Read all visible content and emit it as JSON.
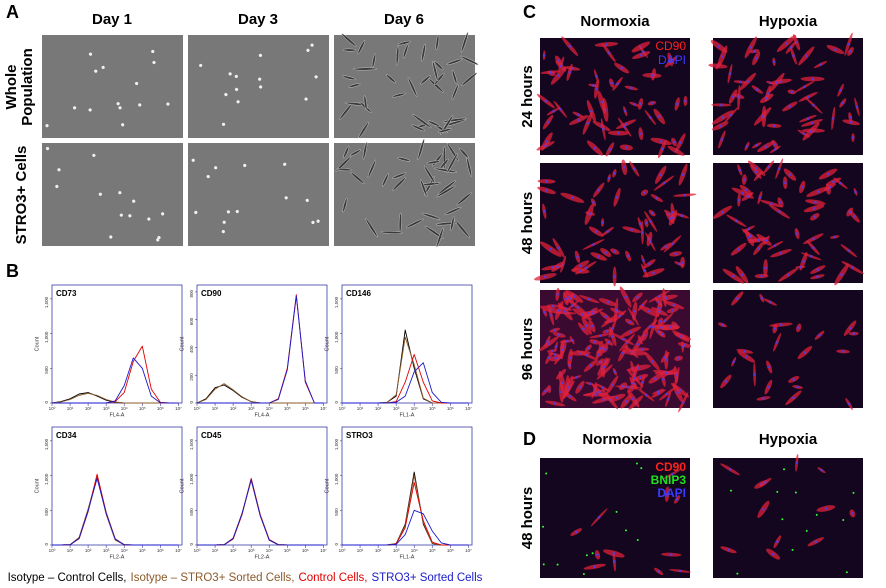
{
  "panel_a": {
    "label": "A",
    "columns": [
      "Day 1",
      "Day 3",
      "Day 6"
    ],
    "rows": [
      [
        "Whole",
        "Population"
      ],
      [
        "STRO3+ Cells"
      ]
    ]
  },
  "panel_b": {
    "label": "B",
    "legend": [
      {
        "text": "Isotype – Control Cells,",
        "color": "#000000"
      },
      {
        "text": "Isotype – STRO3+ Sorted Cells,",
        "color": "#8b5a2b"
      },
      {
        "text": "Control Cells,",
        "color": "#e00000"
      },
      {
        "text": "STRO3+ Sorted Cells",
        "color": "#1a1acc"
      }
    ]
  },
  "panel_c": {
    "label": "C",
    "columns": [
      "Normoxia",
      "Hypoxia"
    ],
    "rows": [
      "24 hours",
      "48 hours",
      "96 hours"
    ],
    "stains": [
      {
        "text": "CD90",
        "color": "#ff2020"
      },
      {
        "text": "DAPI",
        "color": "#3b3bff"
      }
    ]
  },
  "panel_d": {
    "label": "D",
    "columns": [
      "Normoxia",
      "Hypoxia"
    ],
    "rows": [
      "48 hours"
    ],
    "stains": [
      {
        "text": "CD90",
        "color": "#ff2020"
      },
      {
        "text": "BNIP3",
        "color": "#20e020"
      },
      {
        "text": "DAPI",
        "color": "#3b3bff"
      }
    ]
  },
  "chart_data": [
    {
      "type": "line",
      "title": "CD73",
      "xlabel": "FL4-A",
      "ylabel": "Count",
      "x": [
        0,
        0.5,
        1,
        1.5,
        2,
        2.5,
        3,
        3.5,
        4,
        4.5,
        5,
        5.5,
        6,
        6.5,
        7
      ],
      "xlim": [
        0,
        7.2
      ],
      "xticks": [
        {
          "value": 0,
          "label": "10⁰"
        },
        {
          "value": 1,
          "label": "10¹"
        },
        {
          "value": 2,
          "label": "10²"
        },
        {
          "value": 3,
          "label": "10³"
        },
        {
          "value": 4,
          "label": "10⁴"
        },
        {
          "value": 5,
          "label": "10⁵"
        },
        {
          "value": 6,
          "label": "10⁶"
        },
        {
          "value": 7,
          "label": "10⁷"
        }
      ],
      "ylim": [
        0,
        1700
      ],
      "yticks": [
        0,
        500,
        {
          "value": 1000,
          "label": "1,000"
        },
        {
          "value": 1500,
          "label": "1,500"
        }
      ],
      "series": [
        {
          "color": "#000000",
          "values": [
            0,
            20,
            60,
            130,
            150,
            100,
            40,
            10,
            0,
            0,
            0,
            0,
            0,
            0,
            0
          ]
        },
        {
          "color": "#8b5a2b",
          "values": [
            0,
            15,
            50,
            110,
            140,
            110,
            50,
            15,
            0,
            0,
            0,
            0,
            0,
            0,
            0
          ]
        },
        {
          "color": "#e00000",
          "values": [
            0,
            0,
            0,
            0,
            0,
            0,
            0,
            20,
            150,
            600,
            820,
            200,
            10,
            0,
            0
          ]
        },
        {
          "color": "#1a1acc",
          "values": [
            0,
            0,
            0,
            0,
            0,
            0,
            0,
            30,
            250,
            650,
            500,
            100,
            5,
            0,
            0
          ]
        }
      ]
    },
    {
      "type": "line",
      "title": "CD90",
      "xlabel": "FL4-A",
      "ylabel": "Count",
      "x": [
        0,
        0.5,
        1,
        1.5,
        2,
        2.5,
        3,
        3.5,
        4,
        4.5,
        5,
        5.5,
        6,
        6.5,
        7
      ],
      "xlim": [
        0,
        7.2
      ],
      "xticks": [
        {
          "value": 0,
          "label": "10⁰"
        },
        {
          "value": 1,
          "label": "10¹"
        },
        {
          "value": 2,
          "label": "10²"
        },
        {
          "value": 3,
          "label": "10³"
        },
        {
          "value": 4,
          "label": "10⁴"
        },
        {
          "value": 5,
          "label": "10⁵"
        },
        {
          "value": 6,
          "label": "10⁶"
        },
        {
          "value": 7,
          "label": "10⁷"
        }
      ],
      "ylim": [
        0,
        850
      ],
      "yticks": [
        0,
        200,
        400,
        600,
        800
      ],
      "series": [
        {
          "color": "#000000",
          "values": [
            0,
            30,
            110,
            130,
            90,
            40,
            10,
            0,
            0,
            0,
            0,
            0,
            0,
            0,
            0
          ]
        },
        {
          "color": "#8b5a2b",
          "values": [
            0,
            25,
            100,
            140,
            95,
            45,
            10,
            0,
            0,
            0,
            0,
            0,
            0,
            0,
            0
          ]
        },
        {
          "color": "#e00000",
          "values": [
            0,
            0,
            0,
            0,
            0,
            0,
            0,
            0,
            0,
            30,
            250,
            780,
            150,
            0,
            0
          ]
        },
        {
          "color": "#1a1acc",
          "values": [
            0,
            0,
            0,
            0,
            0,
            0,
            0,
            0,
            0,
            25,
            240,
            770,
            160,
            0,
            0
          ]
        }
      ]
    },
    {
      "type": "line",
      "title": "CD146",
      "xlabel": "FL1-A",
      "ylabel": "Count",
      "x": [
        0,
        0.5,
        1,
        1.5,
        2,
        2.5,
        3,
        3.5,
        4,
        4.5,
        5,
        5.5,
        6,
        6.5,
        7
      ],
      "xlim": [
        0,
        7.2
      ],
      "xticks": [
        {
          "value": 0,
          "label": "10⁰"
        },
        {
          "value": 1,
          "label": "10¹"
        },
        {
          "value": 2,
          "label": "10²"
        },
        {
          "value": 3,
          "label": "10³"
        },
        {
          "value": 4,
          "label": "10⁴"
        },
        {
          "value": 5,
          "label": "10⁵"
        },
        {
          "value": 6,
          "label": "10⁶"
        },
        {
          "value": 7,
          "label": "10⁷"
        }
      ],
      "ylim": [
        0,
        1700
      ],
      "yticks": [
        0,
        500,
        {
          "value": 1000,
          "label": "1,000"
        },
        {
          "value": 1500,
          "label": "1,500"
        }
      ],
      "series": [
        {
          "color": "#000000",
          "values": [
            0,
            0,
            0,
            0,
            0,
            10,
            100,
            1050,
            500,
            60,
            0,
            0,
            0,
            0,
            0
          ]
        },
        {
          "color": "#8b5a2b",
          "values": [
            0,
            0,
            0,
            0,
            0,
            10,
            120,
            950,
            550,
            70,
            0,
            0,
            0,
            0,
            0
          ]
        },
        {
          "color": "#e00000",
          "values": [
            0,
            0,
            0,
            0,
            0,
            0,
            20,
            300,
            700,
            300,
            30,
            0,
            0,
            0,
            0
          ]
        },
        {
          "color": "#1a1acc",
          "values": [
            0,
            0,
            0,
            0,
            0,
            0,
            10,
            100,
            450,
            580,
            150,
            10,
            0,
            0,
            0
          ]
        }
      ]
    },
    {
      "type": "line",
      "title": "CD34",
      "xlabel": "FL2-A",
      "ylabel": "Count",
      "x": [
        0,
        0.5,
        1,
        1.5,
        2,
        2.5,
        3,
        3.5,
        4,
        4.5,
        5,
        5.5,
        6,
        6.5,
        7
      ],
      "xlim": [
        0,
        7.2
      ],
      "xticks": [
        {
          "value": 0,
          "label": "10⁰"
        },
        {
          "value": 1,
          "label": "10¹"
        },
        {
          "value": 2,
          "label": "10²"
        },
        {
          "value": 3,
          "label": "10³"
        },
        {
          "value": 4,
          "label": "10⁴"
        },
        {
          "value": 5,
          "label": "10⁵"
        },
        {
          "value": 6,
          "label": "10⁶"
        },
        {
          "value": 7,
          "label": "10⁷"
        }
      ],
      "ylim": [
        0,
        1700
      ],
      "yticks": [
        0,
        500,
        {
          "value": 1000,
          "label": "1,000"
        },
        {
          "value": 1500,
          "label": "1,500"
        }
      ],
      "series": [
        {
          "color": "#000000",
          "values": [
            0,
            0,
            5,
            100,
            500,
            1000,
            450,
            80,
            5,
            0,
            0,
            0,
            0,
            0,
            0
          ]
        },
        {
          "color": "#8b5a2b",
          "values": [
            0,
            0,
            5,
            110,
            520,
            980,
            440,
            70,
            5,
            0,
            0,
            0,
            0,
            0,
            0
          ]
        },
        {
          "color": "#e00000",
          "values": [
            0,
            0,
            5,
            90,
            480,
            1020,
            470,
            90,
            5,
            0,
            0,
            0,
            0,
            0,
            0
          ]
        },
        {
          "color": "#1a1acc",
          "values": [
            0,
            0,
            5,
            95,
            490,
            960,
            460,
            85,
            5,
            0,
            0,
            0,
            0,
            0,
            0
          ]
        }
      ]
    },
    {
      "type": "line",
      "title": "CD45",
      "xlabel": "FL2-A",
      "ylabel": "Count",
      "x": [
        0,
        0.5,
        1,
        1.5,
        2,
        2.5,
        3,
        3.5,
        4,
        4.5,
        5,
        5.5,
        6,
        6.5,
        7
      ],
      "xlim": [
        0,
        7.2
      ],
      "xticks": [
        {
          "value": 0,
          "label": "10⁰"
        },
        {
          "value": 1,
          "label": "10¹"
        },
        {
          "value": 2,
          "label": "10²"
        },
        {
          "value": 3,
          "label": "10³"
        },
        {
          "value": 4,
          "label": "10⁴"
        },
        {
          "value": 5,
          "label": "10⁵"
        },
        {
          "value": 6,
          "label": "10⁶"
        },
        {
          "value": 7,
          "label": "10⁷"
        }
      ],
      "ylim": [
        0,
        1700
      ],
      "yticks": [
        0,
        500,
        {
          "value": 1000,
          "label": "1,000"
        },
        {
          "value": 1500,
          "label": "1,500"
        }
      ],
      "series": [
        {
          "color": "#000000",
          "values": [
            0,
            0,
            0,
            5,
            90,
            450,
            950,
            430,
            70,
            5,
            0,
            0,
            0,
            0,
            0
          ]
        },
        {
          "color": "#8b5a2b",
          "values": [
            0,
            0,
            0,
            5,
            100,
            460,
            930,
            420,
            75,
            5,
            0,
            0,
            0,
            0,
            0
          ]
        },
        {
          "color": "#e00000",
          "values": [
            0,
            0,
            0,
            5,
            85,
            440,
            960,
            440,
            80,
            5,
            0,
            0,
            0,
            0,
            0
          ]
        },
        {
          "color": "#1a1acc",
          "values": [
            0,
            0,
            0,
            5,
            95,
            455,
            940,
            425,
            70,
            5,
            0,
            0,
            0,
            0,
            0
          ]
        }
      ]
    },
    {
      "type": "line",
      "title": "STRO3",
      "xlabel": "FL1-A",
      "ylabel": "Count",
      "x": [
        0,
        0.5,
        1,
        1.5,
        2,
        2.5,
        3,
        3.5,
        4,
        4.5,
        5,
        5.5,
        6,
        6.5,
        7
      ],
      "xlim": [
        0,
        7.2
      ],
      "xticks": [
        {
          "value": 0,
          "label": "10⁰"
        },
        {
          "value": 1,
          "label": "10¹"
        },
        {
          "value": 2,
          "label": "10²"
        },
        {
          "value": 3,
          "label": "10³"
        },
        {
          "value": 4,
          "label": "10⁴"
        },
        {
          "value": 5,
          "label": "10⁵"
        },
        {
          "value": 6,
          "label": "10⁶"
        },
        {
          "value": 7,
          "label": "10⁷"
        }
      ],
      "ylim": [
        0,
        1700
      ],
      "yticks": [
        0,
        500,
        {
          "value": 1000,
          "label": "1,000"
        },
        {
          "value": 1500,
          "label": "1,500"
        }
      ],
      "series": [
        {
          "color": "#000000",
          "values": [
            0,
            0,
            0,
            0,
            0,
            0,
            20,
            300,
            1050,
            300,
            20,
            0,
            0,
            0,
            0
          ]
        },
        {
          "color": "#8b5a2b",
          "values": [
            0,
            0,
            0,
            0,
            0,
            0,
            20,
            280,
            1000,
            320,
            25,
            0,
            0,
            0,
            0
          ]
        },
        {
          "color": "#e00000",
          "values": [
            0,
            0,
            0,
            0,
            0,
            0,
            15,
            250,
            900,
            350,
            40,
            0,
            0,
            0,
            0
          ]
        },
        {
          "color": "#1a1acc",
          "values": [
            0,
            0,
            0,
            0,
            0,
            0,
            10,
            150,
            500,
            450,
            200,
            30,
            0,
            0,
            0
          ]
        }
      ]
    }
  ]
}
